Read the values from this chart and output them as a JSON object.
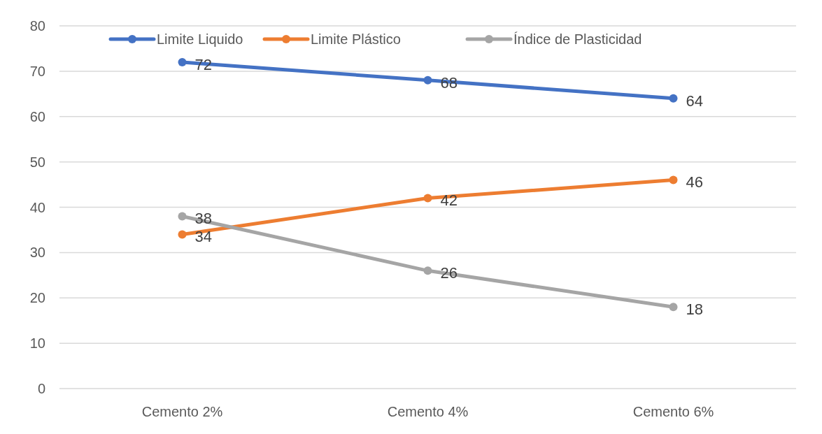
{
  "chart_data": {
    "type": "line",
    "categories": [
      "Cemento 2%",
      "Cemento 4%",
      "Cemento 6%"
    ],
    "series": [
      {
        "name": "Limite Liquido",
        "color": "#4472c4",
        "values": [
          72,
          68,
          64
        ]
      },
      {
        "name": "Limite Plástico",
        "color": "#ed7d31",
        "values": [
          34,
          42,
          46
        ]
      },
      {
        "name": "Índice de Plasticidad",
        "color": "#a5a5a5",
        "values": [
          38,
          26,
          18
        ]
      }
    ],
    "ylim": [
      0,
      80
    ],
    "yticks": [
      0,
      10,
      20,
      30,
      40,
      50,
      60,
      70,
      80
    ],
    "grid": "y",
    "legend": "top",
    "marker": "circle",
    "line_style": "solid",
    "data_labels": true
  }
}
